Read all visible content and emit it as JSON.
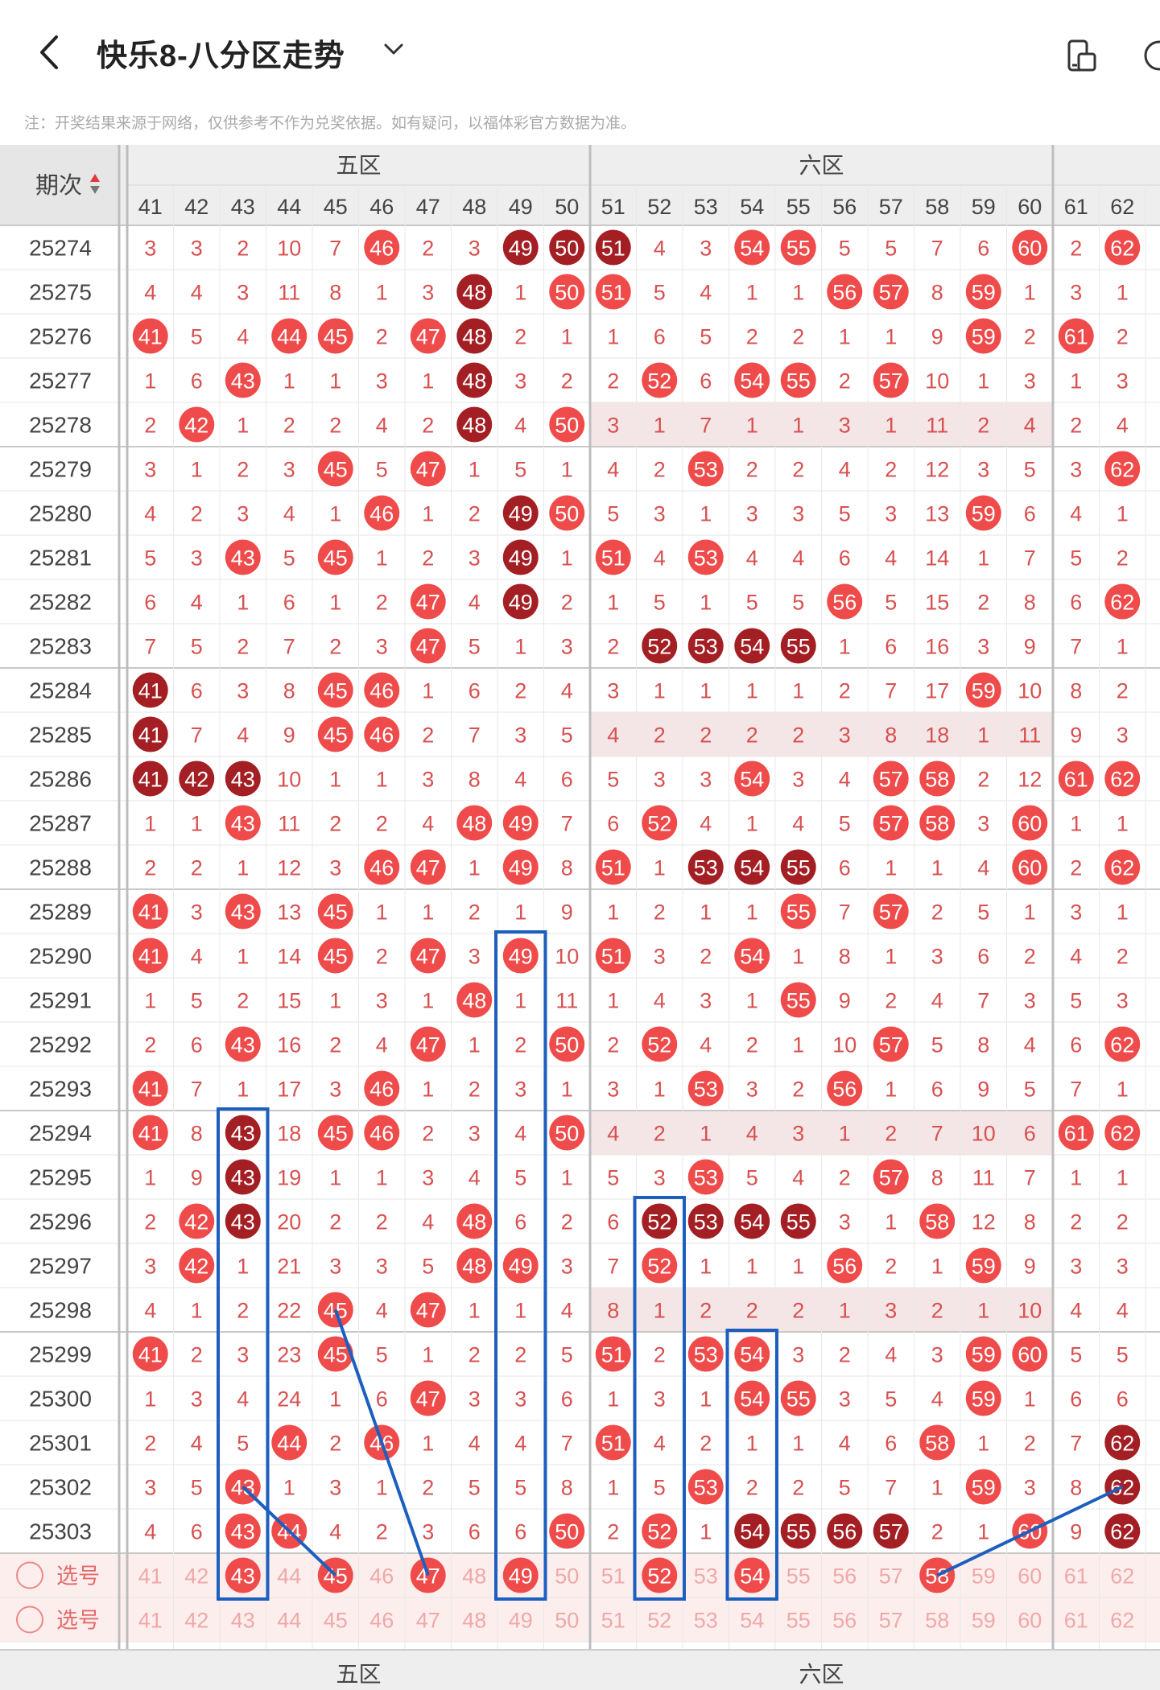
{
  "header": {
    "title": "快乐8-八分区走势",
    "back_icon": "chevron-left-icon",
    "dropdown_icon": "chevron-down-icon",
    "action_icons": [
      "device-icon",
      "help-icon"
    ]
  },
  "note": "注：开奖结果来源于网络，仅供参考不作为兑奖依据。如有疑问，以福体彩官方数据为准。",
  "table": {
    "period_header": "期次",
    "zones": [
      "五区",
      "六区"
    ],
    "columns": [
      "41",
      "42",
      "43",
      "44",
      "45",
      "46",
      "47",
      "48",
      "49",
      "50",
      "51",
      "52",
      "53",
      "54",
      "55",
      "56",
      "57",
      "58",
      "59",
      "60",
      "61",
      "62"
    ],
    "rows": [
      {
        "period": "25274",
        "hits": "3,3,2,10,7,H,2,3,D,D,D,4,3,H,H,5,5,7,6,H,2,H"
      },
      {
        "period": "25275",
        "hits": "4,4,3,11,8,1,3,D,1,H,H,5,4,1,1,H,H,8,H,1,3,1"
      },
      {
        "period": "25276",
        "hits": "H,5,4,H,H,2,H,D,2,1,1,6,5,2,2,1,1,9,H,2,H,2"
      },
      {
        "period": "25277",
        "hits": "1,6,H,1,1,3,1,D,3,2,2,H,6,H,H,2,H,10,1,3,1,3"
      },
      {
        "period": "25278",
        "hits": "2,H,1,2,2,4,2,D,4,H,3,1,7,1,1,3,1,11,2,4,2,4"
      },
      {
        "period": "25279",
        "hits": "3,1,2,3,H,5,H,1,5,1,4,2,H,2,2,4,2,12,3,5,3,H"
      },
      {
        "period": "25280",
        "hits": "4,2,3,4,1,H,1,2,D,H,5,3,1,3,3,5,3,13,H,6,4,1"
      },
      {
        "period": "25281",
        "hits": "5,3,H,5,H,1,2,3,D,1,H,4,H,4,4,6,4,14,1,7,5,2"
      },
      {
        "period": "25282",
        "hits": "6,4,1,6,1,2,H,4,D,2,1,5,1,5,5,H,5,15,2,8,6,H"
      },
      {
        "period": "25283",
        "hits": "7,5,2,7,2,3,H,5,1,3,2,D,D,D,D,1,6,16,3,9,7,1"
      },
      {
        "period": "25284",
        "hits": "D,6,3,8,H,H,1,6,2,4,3,1,1,1,1,2,7,17,H,10,8,2"
      },
      {
        "period": "25285",
        "hits": "D,7,4,9,H,H,2,7,3,5,4,2,2,2,2,3,8,18,1,11,9,3"
      },
      {
        "period": "25286",
        "hits": "D,D,D,10,1,1,3,8,4,6,5,3,3,H,3,4,H,H,2,12,H,H"
      },
      {
        "period": "25287",
        "hits": "1,1,H,11,2,2,4,H,H,7,6,H,4,1,4,5,H,H,3,H,1,1"
      },
      {
        "period": "25288",
        "hits": "2,2,1,12,3,H,H,1,H,8,H,1,D,D,D,6,1,1,4,H,2,H"
      },
      {
        "period": "25289",
        "hits": "H,3,H,13,H,1,1,2,1,9,1,2,1,1,H,7,H,2,5,1,3,1"
      },
      {
        "period": "25290",
        "hits": "H,4,1,14,H,2,H,3,H,10,H,3,2,H,1,8,1,3,6,2,4,2"
      },
      {
        "period": "25291",
        "hits": "1,5,2,15,1,3,1,H,1,11,1,4,3,1,H,9,2,4,7,3,5,3"
      },
      {
        "period": "25292",
        "hits": "2,6,H,16,2,4,H,1,2,H,2,H,4,2,1,10,H,5,8,4,6,H"
      },
      {
        "period": "25293",
        "hits": "H,7,1,17,3,H,1,2,3,1,3,1,H,3,2,H,1,6,9,5,7,1"
      },
      {
        "period": "25294",
        "hits": "H,8,D,18,H,H,2,3,4,H,4,2,1,4,3,1,2,7,10,6,H,H"
      },
      {
        "period": "25295",
        "hits": "1,9,D,19,1,1,3,4,5,1,5,3,H,5,4,2,H,8,11,7,1,1"
      },
      {
        "period": "25296",
        "hits": "2,H,D,20,2,2,4,H,6,2,6,D,D,D,D,3,1,H,12,8,2,2"
      },
      {
        "period": "25297",
        "hits": "3,H,1,21,3,3,5,H,H,3,7,H,1,1,1,H,2,1,H,9,3,3"
      },
      {
        "period": "25298",
        "hits": "4,1,2,22,H,4,H,1,1,4,8,1,2,2,2,1,3,2,1,10,4,4"
      },
      {
        "period": "25299",
        "hits": "H,2,3,23,H,5,1,2,2,5,H,2,H,H,3,2,4,3,H,H,5,5"
      },
      {
        "period": "25300",
        "hits": "1,3,4,24,1,6,H,3,3,6,1,3,1,H,H,3,5,4,H,1,6,6"
      },
      {
        "period": "25301",
        "hits": "2,4,5,H,2,H,1,4,4,7,H,4,2,1,1,4,6,H,1,2,7,D"
      },
      {
        "period": "25302",
        "hits": "3,5,H,1,3,1,2,5,5,8,1,5,H,2,2,5,7,1,H,3,8,D"
      },
      {
        "period": "25303",
        "hits": "4,6,H,H,4,2,3,6,6,H,2,H,1,D,D,D,D,2,1,H,9,D"
      }
    ],
    "select_label": "选号",
    "select_rows": [
      {
        "label": "选号",
        "marked": "43,45,47,49,52,54,58"
      },
      {
        "label": "选号",
        "marked": ""
      }
    ]
  },
  "colors": {
    "hit_red": "#ef4b4b",
    "hit_dark": "#a31f24",
    "miss_text": "#d95050",
    "period_text": "#444444",
    "blue_annotation": "#1d5fbf"
  },
  "icons": [
    "chevron-left-icon",
    "chevron-down-icon",
    "device-icon",
    "help-icon",
    "sort-icon",
    "radio-icon"
  ]
}
